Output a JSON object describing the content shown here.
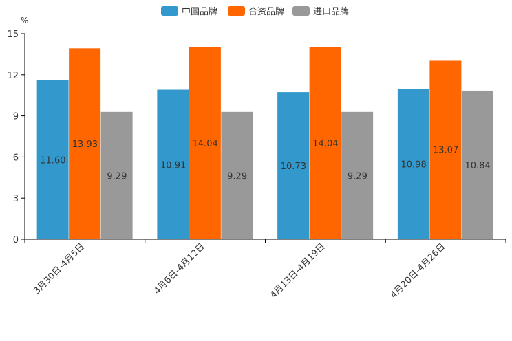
{
  "chart_data": {
    "type": "bar",
    "categories": [
      "3月30日-4月5日",
      "4月6日-4月12日",
      "4月13日-4月19日",
      "4月20日-4月26日"
    ],
    "series": [
      {
        "name": "中国品牌",
        "color": "#3399cc",
        "values": [
          11.6,
          10.91,
          10.73,
          10.98
        ],
        "labels": [
          "11.60",
          "10.91",
          "10.73",
          "10.98"
        ]
      },
      {
        "name": "合资品牌",
        "color": "#ff6600",
        "values": [
          13.93,
          14.04,
          14.04,
          13.07
        ],
        "labels": [
          "13.93",
          "14.04",
          "14.04",
          "13.07"
        ]
      },
      {
        "name": "进口品牌",
        "color": "#999999",
        "values": [
          9.29,
          9.29,
          9.29,
          10.84
        ],
        "labels": [
          "9.29",
          "9.29",
          "9.29",
          "10.84"
        ]
      }
    ],
    "ylabel": "%",
    "ylim": [
      0,
      15
    ],
    "yticks": [
      "0",
      "3",
      "6",
      "9",
      "12",
      "15"
    ],
    "ytick_values": [
      0,
      3,
      6,
      9,
      12,
      15
    ],
    "grid": false,
    "legend": "top-center"
  }
}
